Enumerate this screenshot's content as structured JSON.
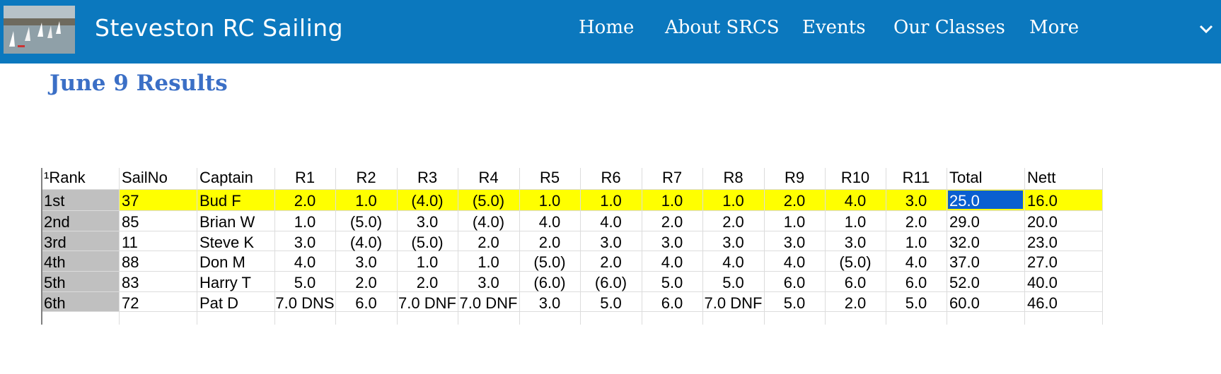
{
  "header": {
    "site_title": "Steveston RC Sailing",
    "nav": [
      "Home",
      "About SRCS",
      "Events",
      "Our Classes",
      "More"
    ]
  },
  "page_title": "June 9  Results",
  "table": {
    "columns": [
      "¹Rank",
      "SailNo",
      "Captain",
      "R1",
      "R2",
      "R3",
      "R4",
      "R5",
      "R6",
      "R7",
      "R8",
      "R9",
      "R10",
      "R11",
      "Total",
      "Nett"
    ],
    "rows": [
      [
        "1st",
        "37",
        "Bud F",
        "2.0",
        "1.0",
        "(4.0)",
        "(5.0)",
        "1.0",
        "1.0",
        "1.0",
        "1.0",
        "2.0",
        "4.0",
        "3.0",
        "25.0",
        "16.0"
      ],
      [
        "2nd",
        "85",
        "Brian W",
        "1.0",
        "(5.0)",
        "3.0",
        "(4.0)",
        "4.0",
        "4.0",
        "2.0",
        "2.0",
        "1.0",
        "1.0",
        "2.0",
        "29.0",
        "20.0"
      ],
      [
        "3rd",
        "11",
        "Steve K",
        "3.0",
        "(4.0)",
        "(5.0)",
        "2.0",
        "2.0",
        "3.0",
        "3.0",
        "3.0",
        "3.0",
        "3.0",
        "1.0",
        "32.0",
        "23.0"
      ],
      [
        "4th",
        "88",
        "Don M",
        "4.0",
        "3.0",
        "1.0",
        "1.0",
        "(5.0)",
        "2.0",
        "4.0",
        "4.0",
        "4.0",
        "(5.0)",
        "4.0",
        "37.0",
        "27.0"
      ],
      [
        "5th",
        "83",
        "Harry T",
        "5.0",
        "2.0",
        "2.0",
        "3.0",
        "(6.0)",
        "(6.0)",
        "5.0",
        "5.0",
        "6.0",
        "6.0",
        "6.0",
        "52.0",
        "40.0"
      ],
      [
        "6th",
        "72",
        "Pat D",
        "7.0 DNS",
        "6.0",
        "7.0 DNF",
        "7.0 DNF",
        "3.0",
        "5.0",
        "6.0",
        "7.0 DNF",
        "5.0",
        "2.0",
        "5.0",
        "60.0",
        "46.0"
      ]
    ]
  }
}
